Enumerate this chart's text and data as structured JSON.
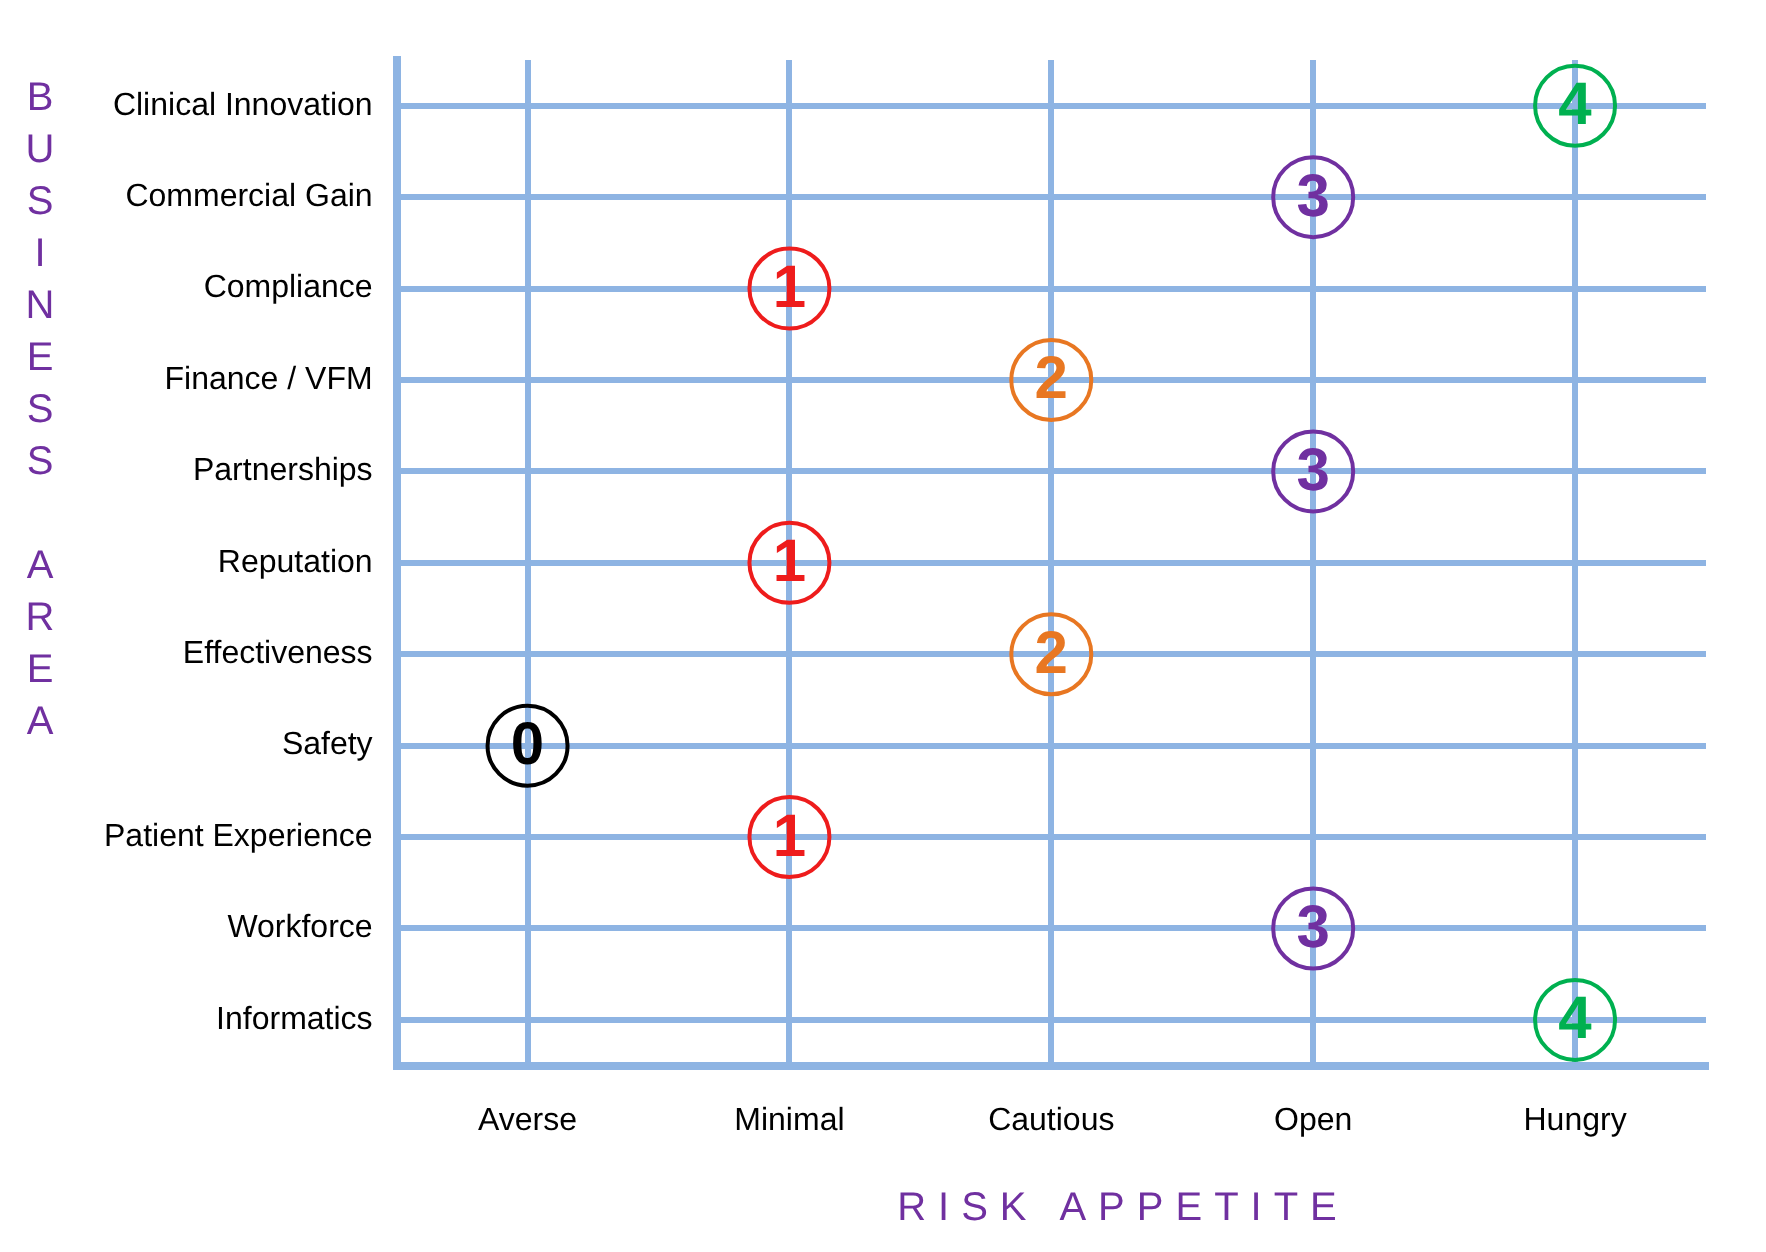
{
  "chart_data": {
    "type": "heatmap",
    "xlabel": "RISK APPETITE",
    "ylabel": "BUSINESS AREA",
    "categories": [
      "Averse",
      "Minimal",
      "Cautious",
      "Open",
      "Hungry"
    ],
    "y_categories": [
      "Clinical Innovation",
      "Commercial Gain",
      "Compliance",
      "Finance / VFM",
      "Partnerships",
      "Reputation",
      "Effectiveness",
      "Safety",
      "Patient Experience",
      "Workforce",
      "Informatics"
    ],
    "cells": [
      [
        null,
        null,
        null,
        null,
        4
      ],
      [
        null,
        null,
        null,
        3,
        null
      ],
      [
        null,
        1,
        null,
        null,
        null
      ],
      [
        null,
        null,
        2,
        null,
        null
      ],
      [
        null,
        null,
        null,
        3,
        null
      ],
      [
        null,
        1,
        null,
        null,
        null
      ],
      [
        null,
        null,
        2,
        null,
        null
      ],
      [
        0,
        null,
        null,
        null,
        null
      ],
      [
        null,
        1,
        null,
        null,
        null
      ],
      [
        null,
        null,
        null,
        3,
        null
      ],
      [
        null,
        null,
        null,
        null,
        4
      ]
    ],
    "colors": [
      "#000000",
      "#ee1c1c",
      "#e87722",
      "#7030a0",
      "#00b050"
    ],
    "data_labels": true,
    "grid": true
  }
}
